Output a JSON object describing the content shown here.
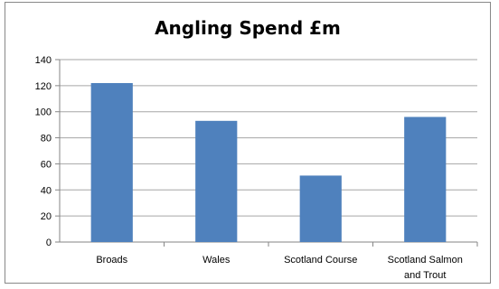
{
  "chart_data": {
    "type": "bar",
    "title": "Angling Spend £m",
    "categories": [
      "Broads",
      "Wales",
      "Scotland Course",
      "Scotland Salmon\nand Trout"
    ],
    "series": [
      {
        "values": [
          122,
          93,
          51,
          96
        ]
      }
    ],
    "ylim": [
      0,
      140
    ],
    "yticks": [
      0,
      20,
      40,
      60,
      80,
      100,
      120,
      140
    ],
    "grid": true,
    "legend": "none",
    "bar_color": "#4f81bd",
    "grid_color": "#a6a6a6"
  }
}
